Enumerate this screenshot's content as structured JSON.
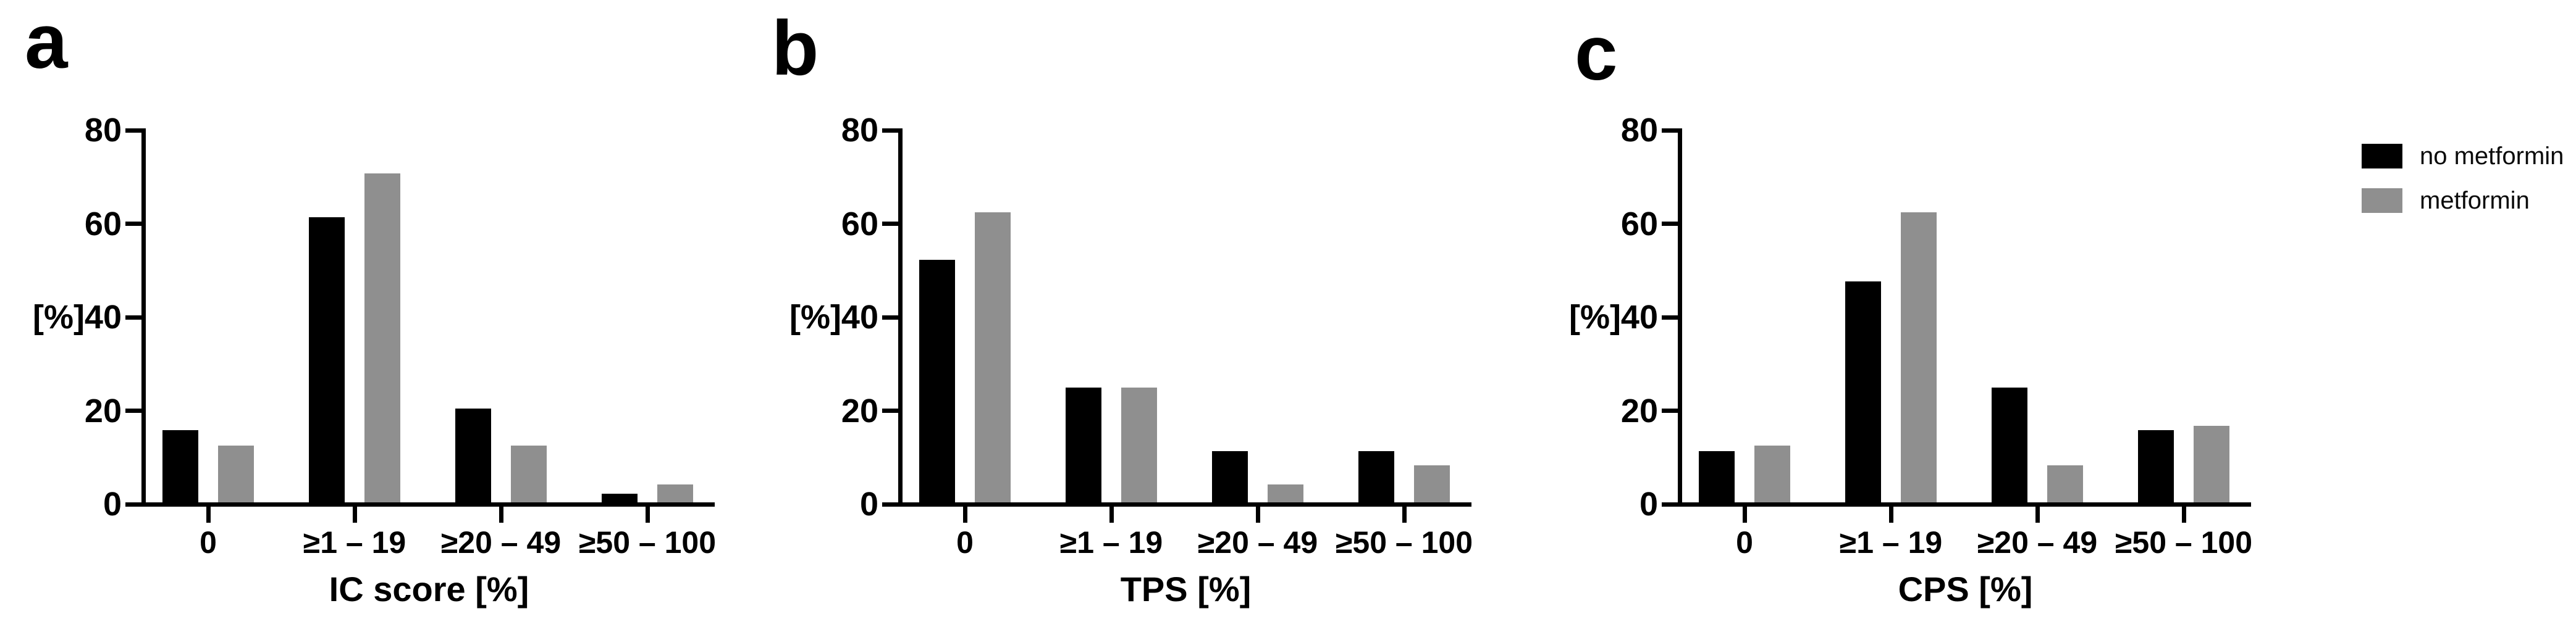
{
  "chart_data": [
    {
      "type": "bar",
      "panel_label": "a",
      "xlabel": "IC score [%]",
      "ylabel": "[%]",
      "ylim": [
        0,
        80
      ],
      "yticks": [
        0,
        20,
        40,
        60,
        80
      ],
      "grid": false,
      "categories": [
        "0",
        "≥1 – 19",
        "≥20 – 49",
        "≥50 – 100"
      ],
      "series": [
        {
          "name": "no metformin",
          "color": "#000000",
          "values": [
            15.9,
            61.4,
            20.5,
            2.3
          ]
        },
        {
          "name": "metformin",
          "color": "#8f8f8f",
          "values": [
            12.5,
            70.8,
            12.5,
            4.2
          ]
        }
      ]
    },
    {
      "type": "bar",
      "panel_label": "b",
      "xlabel": "TPS [%]",
      "ylabel": "[%]",
      "ylim": [
        0,
        80
      ],
      "yticks": [
        0,
        20,
        40,
        60,
        80
      ],
      "grid": false,
      "categories": [
        "0",
        "≥1 – 19",
        "≥20 – 49",
        "≥50 – 100"
      ],
      "series": [
        {
          "name": "no metformin",
          "color": "#000000",
          "values": [
            52.3,
            25.0,
            11.4,
            11.4
          ]
        },
        {
          "name": "metformin",
          "color": "#8f8f8f",
          "values": [
            62.5,
            25.0,
            4.2,
            8.3
          ]
        }
      ]
    },
    {
      "type": "bar",
      "panel_label": "c",
      "xlabel": "CPS [%]",
      "ylabel": "[%]",
      "ylim": [
        0,
        80
      ],
      "yticks": [
        0,
        20,
        40,
        60,
        80
      ],
      "grid": false,
      "categories": [
        "0",
        "≥1 – 19",
        "≥20 – 49",
        "≥50 – 100"
      ],
      "series": [
        {
          "name": "no metformin",
          "color": "#000000",
          "values": [
            11.4,
            47.7,
            25.0,
            15.9
          ]
        },
        {
          "name": "metformin",
          "color": "#8f8f8f",
          "values": [
            12.5,
            62.5,
            8.3,
            16.7
          ]
        }
      ]
    }
  ],
  "legend": {
    "position": "outside-right",
    "items": [
      {
        "label": "no metformin",
        "color": "#000000"
      },
      {
        "label": "metformin",
        "color": "#8f8f8f"
      }
    ]
  }
}
